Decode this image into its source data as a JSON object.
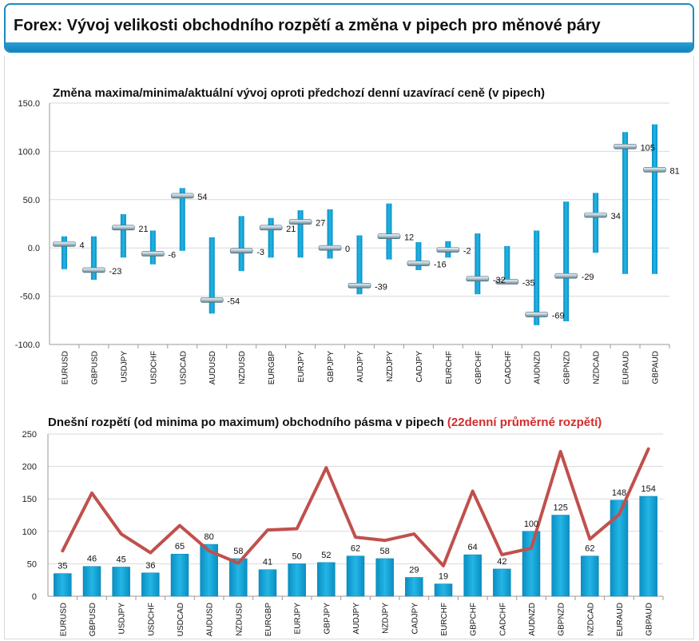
{
  "header": {
    "title": "Forex: Vývoj velikosti obchodního rozpětí a změna v pipech pro měnové páry"
  },
  "colors": {
    "accent": "#1283bd",
    "bar": "#0ea2d6",
    "line": "#c0504d",
    "red_text": "#d62b2b"
  },
  "chart_data": [
    {
      "type": "bar",
      "subtype": "high-low-current",
      "title": "Změna maxima/minima/aktuální vývoj oproti předchozí denní uzavírací ceně (v pipech)",
      "ylim": [
        -100,
        150
      ],
      "yticks": [
        "150.0",
        "100.0",
        "50.0",
        "0.0",
        "-50.0",
        "-100.0"
      ],
      "grid": true,
      "categories": [
        "EURUSD",
        "GBPUSD",
        "USDJPY",
        "USDCHF",
        "USDCAD",
        "AUDUSD",
        "NZDUSD",
        "EURGBP",
        "EURJPY",
        "GBPJPY",
        "AUDJPY",
        "NZDJPY",
        "CADJPY",
        "EURCHF",
        "GBPCHF",
        "CADCHF",
        "AUDNZD",
        "GBPNZD",
        "NZDCAD",
        "EURAUD",
        "GBPAUD"
      ],
      "high": [
        12,
        12,
        35,
        18,
        62,
        11,
        33,
        31,
        39,
        40,
        13,
        46,
        6,
        7,
        15,
        2,
        18,
        48,
        57,
        120,
        128
      ],
      "low": [
        -22,
        -33,
        -10,
        -17,
        -3,
        -68,
        -24,
        -10,
        -10,
        -11,
        -48,
        -12,
        -23,
        -10,
        -48,
        -36,
        -80,
        -76,
        -5,
        -27,
        -27
      ],
      "current": [
        4,
        -23,
        21,
        -6,
        54,
        -54,
        -3,
        21,
        27,
        0,
        -39,
        12,
        -16,
        -2,
        -32,
        -35,
        -69,
        -29,
        34,
        105,
        81
      ],
      "labels": [
        "4",
        "-23",
        "21",
        "-6",
        "54",
        "-54",
        "-3",
        "21",
        "27",
        "0",
        "-39",
        "12",
        "-16",
        "-2",
        "-32",
        "-35",
        "-69",
        "-29",
        "34",
        "105",
        "81"
      ]
    },
    {
      "type": "bar",
      "title": "Dnešní rozpětí (od minima po maximum) obchodního pásma v pipech",
      "title_highlight": "(22denní průměrné rozpětí)",
      "ylim": [
        0,
        250
      ],
      "yticks": [
        "250",
        "200",
        "150",
        "100",
        "50",
        "0"
      ],
      "grid": true,
      "categories": [
        "EURUSD",
        "GBPUSD",
        "USDJPY",
        "USDCHF",
        "USDCAD",
        "AUDUSD",
        "NZDUSD",
        "EURGBP",
        "EURJPY",
        "GBPJPY",
        "AUDJPY",
        "NZDJPY",
        "CADJPY",
        "EURCHF",
        "GBPCHF",
        "CADCHF",
        "AUDNZD",
        "GBPNZD",
        "NZDCAD",
        "EURAUD",
        "GBPAUD"
      ],
      "series": [
        {
          "values": [
            35,
            46,
            45,
            36,
            65,
            80,
            58,
            41,
            50,
            52,
            62,
            58,
            29,
            19,
            64,
            42,
            100,
            125,
            62,
            148,
            154
          ],
          "labels": [
            "35",
            "46",
            "45",
            "36",
            "65",
            "80",
            "58",
            "41",
            "50",
            "52",
            "62",
            "58",
            "29",
            "19",
            "64",
            "42",
            "100",
            "125",
            "62",
            "148",
            "154"
          ]
        },
        {
          "type": "line",
          "values": [
            70,
            159,
            96,
            67,
            109,
            70,
            51,
            102,
            104,
            198,
            91,
            86,
            96,
            47,
            162,
            64,
            74,
            223,
            88,
            126,
            227
          ]
        }
      ]
    }
  ]
}
